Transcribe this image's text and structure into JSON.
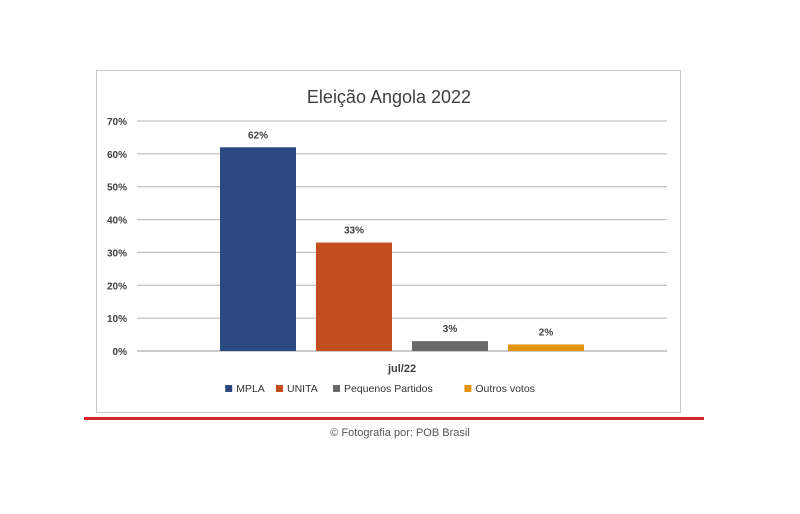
{
  "caption": "© Fotografia por: POB Brasil",
  "chart_data": {
    "type": "bar",
    "title": "Eleição Angola 2022",
    "xlabel": "",
    "ylabel": "",
    "categories": [
      "jul/22"
    ],
    "series": [
      {
        "name": "MPLA",
        "values": [
          62
        ],
        "label": "62%",
        "color": "#2c4a82"
      },
      {
        "name": "UNITA",
        "values": [
          33
        ],
        "label": "33%",
        "color": "#c24d1f"
      },
      {
        "name": "Pequenos Partidos",
        "values": [
          3
        ],
        "label": "3%",
        "color": "#6a6a6a"
      },
      {
        "name": "Outros votos",
        "values": [
          2
        ],
        "label": "2%",
        "color": "#e1940c"
      }
    ],
    "ylim": [
      0,
      70
    ],
    "y_ticks": [
      "0%",
      "10%",
      "20%",
      "30%",
      "40%",
      "50%",
      "60%",
      "70%"
    ],
    "grid": true,
    "legend_position": "bottom"
  }
}
